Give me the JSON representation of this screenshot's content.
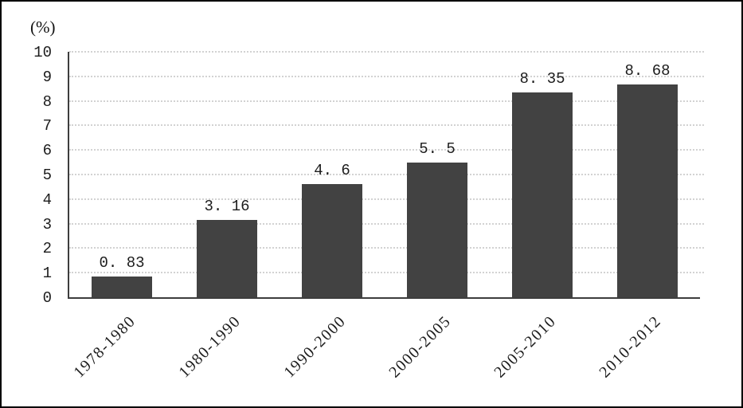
{
  "chart_data": {
    "type": "bar",
    "title": "",
    "xlabel": "",
    "ylabel": "(%)",
    "categories": [
      "1978-1980",
      "1980-1990",
      "1990-2000",
      "2000-2005",
      "2005-2010",
      "2010-2012"
    ],
    "values": [
      0.83,
      3.16,
      4.6,
      5.5,
      8.35,
      8.68
    ],
    "value_labels": [
      "0. 83",
      "3. 16",
      "4. 6",
      "5. 5",
      "8. 35",
      "8. 68"
    ],
    "ylim": [
      0,
      10
    ],
    "yticks": [
      0,
      1,
      2,
      3,
      4,
      5,
      6,
      7,
      8,
      9,
      10
    ],
    "grid": "horizontal-dotted",
    "legend": "none",
    "colors": {
      "bar": "#424242",
      "gridline": "#d2d2d2",
      "axis": "#3d3d3d",
      "text": "#1c1c1c",
      "background": "#ffffff",
      "frame_border": "#000000"
    }
  }
}
